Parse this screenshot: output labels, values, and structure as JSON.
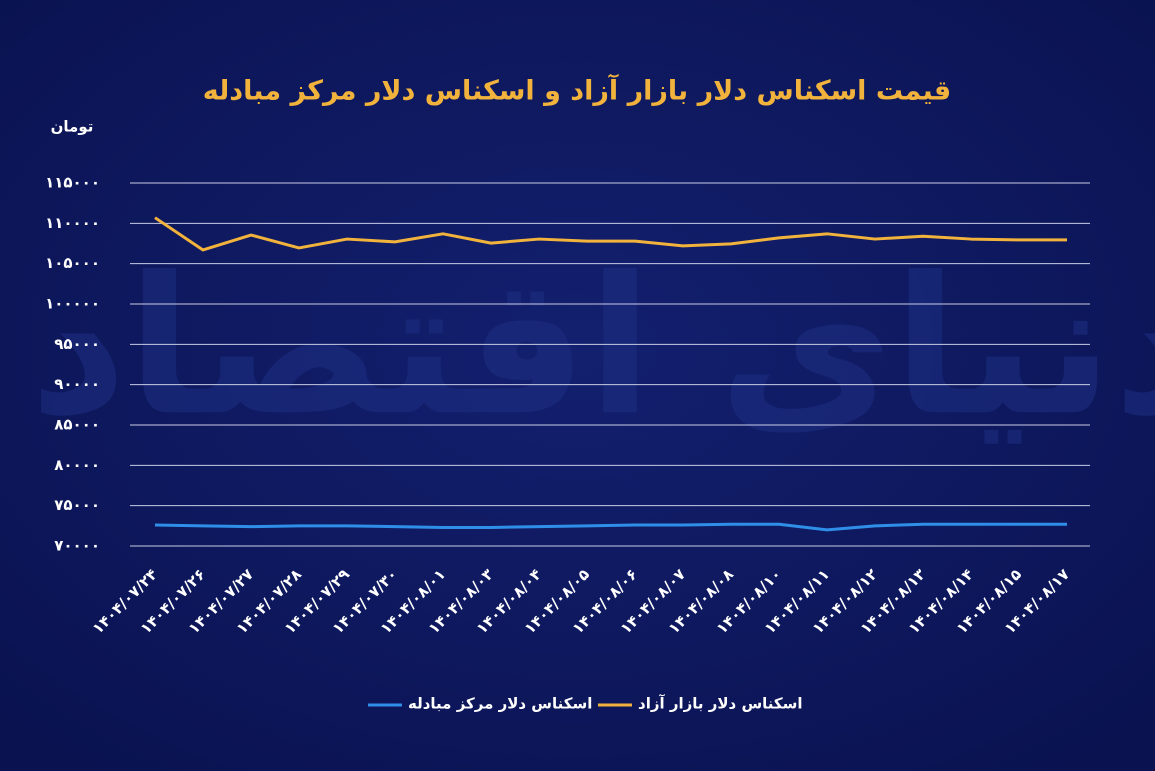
{
  "chart_data": {
    "type": "line",
    "title": "قیمت اسکناس دلار بازار آزاد و اسکناس دلار مرکز مبادله",
    "y_label": "تومان",
    "watermark": "دنیای اقتصاد",
    "categories": [
      "۱۴۰۴/۰۷/۲۴",
      "۱۴۰۴/۰۷/۲۶",
      "۱۴۰۴/۰۷/۲۷",
      "۱۴۰۴/۰۷/۲۸",
      "۱۴۰۴/۰۷/۲۹",
      "۱۴۰۴/۰۷/۳۰",
      "۱۴۰۴/۰۸/۰۱",
      "۱۴۰۴/۰۸/۰۳",
      "۱۴۰۴/۰۸/۰۴",
      "۱۴۰۴/۰۸/۰۵",
      "۱۴۰۴/۰۸/۰۶",
      "۱۴۰۴/۰۸/۰۷",
      "۱۴۰۴/۰۸/۰۸",
      "۱۴۰۴/۰۸/۱۰",
      "۱۴۰۴/۰۸/۱۱",
      "۱۴۰۴/۰۸/۱۲",
      "۱۴۰۴/۰۸/۱۳",
      "۱۴۰۴/۰۸/۱۴",
      "۱۴۰۴/۰۸/۱۵",
      "۱۴۰۴/۰۸/۱۷"
    ],
    "series": [
      {
        "name": "اسکناس دلار بازار آزاد",
        "color": "#f2b33d",
        "values": [
          110700,
          106700,
          108550,
          106950,
          108050,
          107700,
          108700,
          107550,
          108050,
          107800,
          107800,
          107200,
          107450,
          108200,
          108700,
          108050,
          108400,
          108050,
          107950,
          107950
        ]
      },
      {
        "name": "اسکناس دلار مرکز مبادله",
        "color": "#2f8fe8",
        "values": [
          72600,
          72500,
          72400,
          72500,
          72500,
          72400,
          72300,
          72300,
          72400,
          72500,
          72600,
          72600,
          72700,
          72700,
          72000,
          72500,
          72700,
          72700,
          72700,
          72700
        ]
      }
    ],
    "ylim": [
      70000,
      115000
    ],
    "yticks": [
      {
        "value": 70000,
        "label": "۷۰۰۰۰"
      },
      {
        "value": 75000,
        "label": "۷۵۰۰۰"
      },
      {
        "value": 80000,
        "label": "۸۰۰۰۰"
      },
      {
        "value": 85000,
        "label": "۸۵۰۰۰"
      },
      {
        "value": 90000,
        "label": "۹۰۰۰۰"
      },
      {
        "value": 95000,
        "label": "۹۵۰۰۰"
      },
      {
        "value": 100000,
        "label": "۱۰۰۰۰۰"
      },
      {
        "value": 105000,
        "label": "۱۰۵۰۰۰"
      },
      {
        "value": 110000,
        "label": "۱۱۰۰۰۰"
      },
      {
        "value": 115000,
        "label": "۱۱۵۰۰۰"
      }
    ],
    "grid": true
  }
}
